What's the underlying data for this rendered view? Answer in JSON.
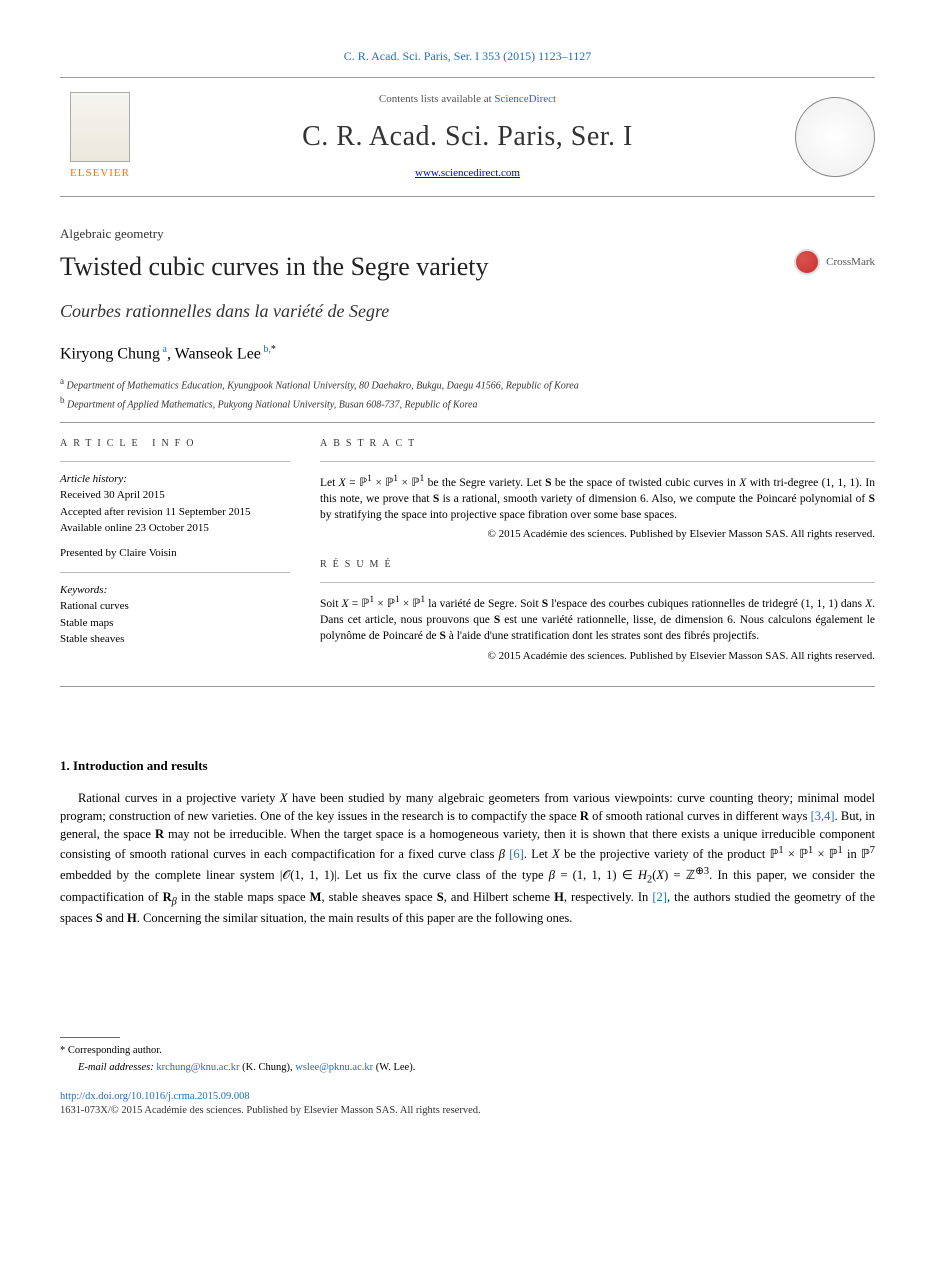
{
  "citation": "C. R. Acad. Sci. Paris, Ser. I 353 (2015) 1123–1127",
  "masthead": {
    "contents_prefix": "Contents lists available at ",
    "contents_link": "ScienceDirect",
    "journal": "C. R. Acad. Sci. Paris, Ser. I",
    "site": "www.sciencedirect.com",
    "publisher": "ELSEVIER"
  },
  "article": {
    "category": "Algebraic geometry",
    "title_en": "Twisted cubic curves in the Segre variety",
    "title_fr": "Courbes rationnelles dans la variété de Segre",
    "crossmark": "CrossMark",
    "authors_html": "Kiryong Chung<span class='sup'> a</span>, Wanseok Lee<span class='sup'> b,</span><span class='sup star'>*</span>",
    "affil_a": "Department of Mathematics Education, Kyungpook National University, 80 Daehakro, Bukgu, Daegu 41566, Republic of Korea",
    "affil_b": "Department of Applied Mathematics, Pukyong National University, Busan 608-737, Republic of Korea"
  },
  "info": {
    "heading": "ARTICLE INFO",
    "history_label": "Article history:",
    "received": "Received 30 April 2015",
    "accepted": "Accepted after revision 11 September 2015",
    "online": "Available online 23 October 2015",
    "presented": "Presented by Claire Voisin",
    "keywords_label": "Keywords:",
    "keywords": [
      "Rational curves",
      "Stable maps",
      "Stable sheaves"
    ]
  },
  "abstract": {
    "heading": "ABSTRACT",
    "text_html": "Let <span class='math'>X</span> = ℙ<sup>1</sup> × ℙ<sup>1</sup> × ℙ<sup>1</sup> be the Segre variety. Let <b>S</b> be the space of twisted cubic curves in <span class='math'>X</span> with tri-degree (1, 1, 1). In this note, we prove that <b>S</b> is a rational, smooth variety of dimension 6. Also, we compute the Poincaré polynomial of <b>S</b> by stratifying the space into projective space fibration over some base spaces.",
    "copyright": "© 2015 Académie des sciences. Published by Elsevier Masson SAS. All rights reserved."
  },
  "resume": {
    "heading": "RÉSUMÉ",
    "text_html": "Soit <span class='math'>X</span> = ℙ<sup>1</sup> × ℙ<sup>1</sup> × ℙ<sup>1</sup> la variété de Segre. Soit <b>S</b> l'espace des courbes cubiques rationnelles de tridegré (1, 1, 1) dans <span class='math'>X</span>. Dans cet article, nous prouvons que <b>S</b> est une variété rationnelle, lisse, de dimension 6. Nous calculons également le polynôme de Poincaré de <b>S</b> à l'aide d'une stratification dont les strates sont des fibrés projectifs.",
    "copyright": "© 2015 Académie des sciences. Published by Elsevier Masson SAS. All rights reserved."
  },
  "body": {
    "section_heading": "1.  Introduction and results",
    "paragraph_html": "Rational curves in a projective variety <span class='math'>X</span> have been studied by many algebraic geometers from various viewpoints: curve counting theory; minimal model program; construction of new varieties. One of the key issues in the research is to compactify the space <b>R</b> of smooth rational curves in different ways <a href='#'>[3,4]</a>. But, in general, the space <b>R</b> may not be irreducible. When the target space is a homogeneous variety, then it is shown that there exists a unique irreducible component consisting of smooth rational curves in each compactification for a fixed curve class <span class='math'>β</span> <a href='#'>[6]</a>. Let <span class='math'>X</span> be the projective variety of the product ℙ<sup>1</sup> × ℙ<sup>1</sup> × ℙ<sup>1</sup> in ℙ<sup>7</sup> embedded by the complete linear system |𝒪(1, 1, 1)|. Let us fix the curve class of the type <span class='math'>β</span> = (1, 1, 1) ∈ <span class='math'>H</span><sub>2</sub>(<span class='math'>X</span>) = ℤ<sup>⊕3</sup>. In this paper, we consider the compactification of <b>R</b><sub><span class='math'>β</span></sub> in the stable maps space <b>M</b>, stable sheaves space <b>S</b>, and Hilbert scheme <b>H</b>, respectively. In <a href='#'>[2]</a>, the authors studied the geometry of the spaces <b>S</b> and <b>H</b>. Concerning the similar situation, the main results of this paper are the following ones."
  },
  "footer": {
    "corr": "*  Corresponding author.",
    "emails_label": "E-mail addresses:",
    "email1": "krchung@knu.ac.kr",
    "email1_who": " (K. Chung), ",
    "email2": "wslee@pknu.ac.kr",
    "email2_who": " (W. Lee).",
    "doi": "http://dx.doi.org/10.1016/j.crma.2015.09.008",
    "issn_line": "1631-073X/© 2015 Académie des sciences. Published by Elsevier Masson SAS. All rights reserved."
  }
}
